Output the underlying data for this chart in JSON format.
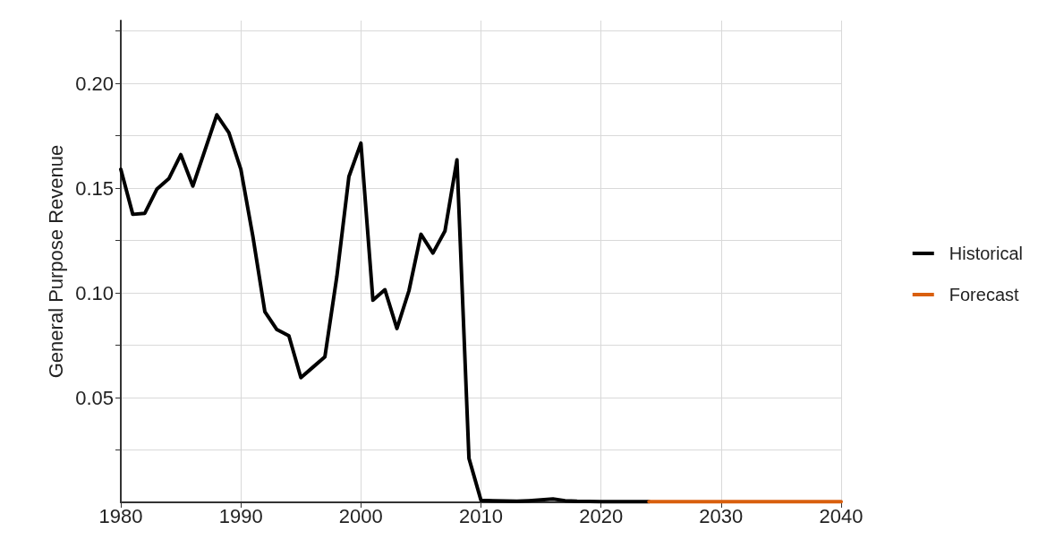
{
  "chart_data": {
    "type": "line",
    "ylabel": "General Purpose Revenue",
    "xlim": [
      1980,
      2040
    ],
    "xticks": [
      1980,
      1990,
      2000,
      2010,
      2020,
      2030,
      2040
    ],
    "ylim": [
      0,
      0.23
    ],
    "yticks": [
      {
        "value": 0.025,
        "label": null
      },
      0.05,
      {
        "value": 0.075,
        "label": null
      },
      {
        "value": 0.1,
        "label": "0.10"
      },
      {
        "value": 0.125,
        "label": null
      },
      0.15,
      {
        "value": 0.175,
        "label": null
      },
      {
        "value": 0.2,
        "label": "0.20"
      },
      {
        "value": 0.225,
        "label": null
      }
    ],
    "grid": true,
    "legend": "right",
    "marker": "none",
    "line_style": "solid",
    "series": [
      {
        "name": "Historical",
        "color": "#000000",
        "x": [
          1980,
          1981,
          1982,
          1983,
          1984,
          1985,
          1986,
          1987,
          1988,
          1989,
          1990,
          1991,
          1992,
          1993,
          1994,
          1995,
          1996,
          1997,
          1998,
          1999,
          2000,
          2001,
          2002,
          2003,
          2004,
          2005,
          2006,
          2007,
          2008,
          2009,
          2010,
          2011,
          2012,
          2013,
          2014,
          2015,
          2016,
          2017,
          2018,
          2019,
          2020,
          2021,
          2022,
          2023,
          2024
        ],
        "values": [
          0.159,
          0.1375,
          0.138,
          0.1495,
          0.1545,
          0.166,
          0.151,
          0.168,
          0.185,
          0.1765,
          0.159,
          0.127,
          0.091,
          0.0825,
          0.0795,
          0.0595,
          0.0645,
          0.0695,
          0.108,
          0.1555,
          0.1715,
          0.0965,
          0.1015,
          0.083,
          0.101,
          0.128,
          0.119,
          0.1295,
          0.1635,
          0.021,
          0.001,
          0.0008,
          0.0006,
          0.0005,
          0.0008,
          0.0012,
          0.0016,
          0.0008,
          0.0005,
          0.0004,
          0.0003,
          0.0003,
          0.0003,
          0.0003,
          0.0003
        ]
      },
      {
        "name": "Forecast",
        "color": "#d95f0e",
        "x": [
          2024,
          2028,
          2032,
          2036,
          2040
        ],
        "values": [
          0.0003,
          0.0003,
          0.0003,
          0.0003,
          0.0003
        ]
      }
    ]
  }
}
